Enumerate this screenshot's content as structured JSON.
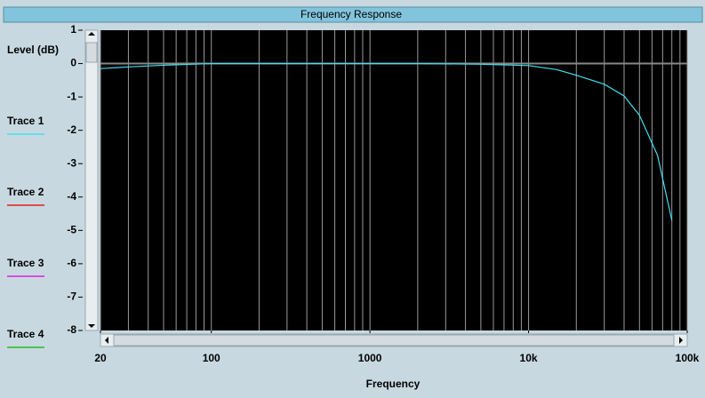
{
  "chart_data": {
    "type": "line",
    "title": "Frequency Response",
    "xlabel": "Frequency",
    "ylabel": "Level (dB)",
    "xscale": "log",
    "x": [
      20,
      30,
      50,
      100,
      200,
      500,
      1000,
      2000,
      5000,
      10000,
      15000,
      20000,
      30000,
      40000,
      50000,
      65000,
      80000
    ],
    "series": [
      {
        "name": "Trace 1",
        "color": "#40e0f0",
        "values": [
          -0.15,
          -0.1,
          -0.05,
          0,
          0,
          0,
          0,
          0,
          -0.02,
          -0.06,
          -0.18,
          -0.35,
          -0.62,
          -0.97,
          -1.55,
          -2.75,
          -4.7
        ]
      },
      {
        "name": "Trace 2",
        "color": "#e02020",
        "values": [
          null,
          null,
          null,
          null,
          null,
          null,
          null,
          null,
          null,
          null,
          null,
          null,
          null,
          null,
          null,
          null,
          null
        ]
      },
      {
        "name": "Trace 3",
        "color": "#e020e0",
        "values": [
          null,
          null,
          null,
          null,
          null,
          null,
          null,
          null,
          null,
          null,
          null,
          null,
          null,
          null,
          null,
          null,
          null
        ]
      },
      {
        "name": "Trace 4",
        "color": "#20c020",
        "values": [
          null,
          null,
          null,
          null,
          null,
          null,
          null,
          null,
          null,
          null,
          null,
          null,
          null,
          null,
          null,
          null,
          null
        ]
      }
    ],
    "xlim": [
      20,
      100000
    ],
    "ylim": [
      -8,
      1
    ],
    "xticks": [
      20,
      100,
      1000,
      {
        "value": 10000,
        "label": "10k"
      },
      {
        "value": 100000,
        "label": "100k"
      }
    ],
    "yticks": [
      1,
      0,
      -1,
      -2,
      -3,
      -4,
      -5,
      -6,
      -7,
      -8
    ],
    "xgrid": [
      20,
      30,
      40,
      50,
      60,
      70,
      80,
      90,
      100,
      200,
      300,
      400,
      500,
      600,
      700,
      800,
      900,
      1000,
      2000,
      3000,
      4000,
      5000,
      6000,
      7000,
      8000,
      9000,
      10000,
      20000,
      30000,
      40000,
      50000,
      60000,
      70000,
      80000,
      90000,
      100000
    ],
    "hline": 0
  }
}
